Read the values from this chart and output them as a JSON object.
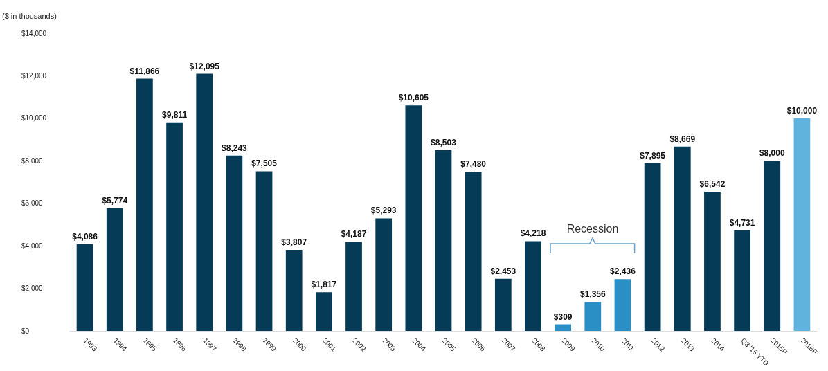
{
  "chart_data": {
    "type": "bar",
    "ylabel": "($ in thousands)",
    "categories": [
      "1993",
      "1994",
      "1995",
      "1996",
      "1997",
      "1998",
      "1999",
      "2000",
      "2001",
      "2002",
      "2003",
      "2004",
      "2005",
      "2006",
      "2007",
      "2008",
      "2009",
      "2010",
      "2011",
      "2012",
      "2013",
      "2014",
      "Q3 '15 YTD",
      "2015F",
      "2016F"
    ],
    "values": [
      4086,
      5774,
      11866,
      9811,
      12095,
      8243,
      7505,
      3807,
      1817,
      4187,
      5293,
      10605,
      8503,
      7480,
      2453,
      4218,
      309,
      1356,
      2436,
      7895,
      8669,
      6542,
      4731,
      8000,
      10000
    ],
    "value_labels": [
      "$4,086",
      "$5,774",
      "$11,866",
      "$9,811",
      "$12,095",
      "$8,243",
      "$7,505",
      "$3,807",
      "$1,817",
      "$4,187",
      "$5,293",
      "$10,605",
      "$8,503",
      "$7,480",
      "$2,453",
      "$4,218",
      "$309",
      "$1,356",
      "$2,436",
      "$7,895",
      "$8,669",
      "$6,542",
      "$4,731",
      "$8,000",
      "$10,000"
    ],
    "colors": [
      "#053b57",
      "#053b57",
      "#053b57",
      "#053b57",
      "#053b57",
      "#053b57",
      "#053b57",
      "#053b57",
      "#053b57",
      "#053b57",
      "#053b57",
      "#053b57",
      "#053b57",
      "#053b57",
      "#053b57",
      "#053b57",
      "#2a8fc4",
      "#2a8fc4",
      "#2a8fc4",
      "#053b57",
      "#053b57",
      "#053b57",
      "#053b57",
      "#053b57",
      "#5fb3dc"
    ],
    "ylim": [
      0,
      14000
    ],
    "yticks": [
      {
        "value": 0,
        "label": "$0"
      },
      {
        "value": 2000,
        "label": "$2,000"
      },
      {
        "value": 4000,
        "label": "$4,000"
      },
      {
        "value": 6000,
        "label": "$6,000"
      },
      {
        "value": 8000,
        "label": "$8,000"
      },
      {
        "value": 10000,
        "label": "$10,000"
      },
      {
        "value": 12000,
        "label": "$12,000"
      },
      {
        "value": 14000,
        "label": "$14,000"
      }
    ],
    "grid": false,
    "annotations": [
      "Recession"
    ]
  }
}
